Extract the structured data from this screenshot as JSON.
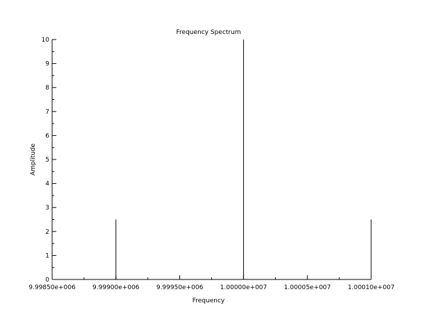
{
  "chart_data": {
    "type": "bar",
    "title": "Frequency Spectrum",
    "xlabel": "Frequency",
    "ylabel": "Amplitude",
    "xlim": [
      9998500,
      10001000
    ],
    "ylim": [
      0,
      10
    ],
    "grid": false,
    "x_ticks": [
      {
        "value": 9998500,
        "label": "9.99850e+006"
      },
      {
        "value": 9999000,
        "label": "9.99900e+006"
      },
      {
        "value": 9999500,
        "label": "9.99950e+006"
      },
      {
        "value": 10000000,
        "label": "1.00000e+007"
      },
      {
        "value": 10000500,
        "label": "1.00005e+007"
      },
      {
        "value": 10001000,
        "label": "1.00010e+007"
      }
    ],
    "y_ticks": [
      0,
      1,
      2,
      3,
      4,
      5,
      6,
      7,
      8,
      9,
      10
    ],
    "points": [
      {
        "x": 9999000,
        "y": 2.5
      },
      {
        "x": 10000000,
        "y": 10
      },
      {
        "x": 10001000,
        "y": 2.5
      }
    ],
    "line_color": "#000000"
  }
}
